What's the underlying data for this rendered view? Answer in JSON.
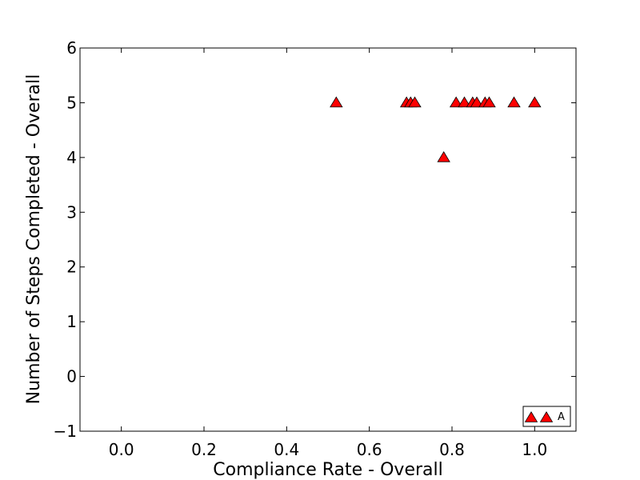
{
  "chart_data": {
    "type": "scatter",
    "title": "",
    "xlabel": "Compliance Rate - Overall",
    "ylabel": "Number of Steps Completed - Overall",
    "xlim": [
      -0.1,
      1.1
    ],
    "ylim": [
      -1,
      6
    ],
    "xticks": [
      0.0,
      0.2,
      0.4,
      0.6,
      0.8,
      1.0
    ],
    "xtick_labels": [
      "0.0",
      "0.2",
      "0.4",
      "0.6",
      "0.8",
      "1.0"
    ],
    "yticks": [
      -1,
      0,
      1,
      2,
      3,
      4,
      5,
      6
    ],
    "ytick_labels": [
      "−1",
      "0",
      "1",
      "2",
      "3",
      "4",
      "5",
      "6"
    ],
    "grid": false,
    "legend": {
      "position": "bottom-right",
      "entries": [
        "A"
      ]
    },
    "series": [
      {
        "name": "A",
        "marker": "triangle-up",
        "color": "#ff0000",
        "edge_color": "#000000",
        "x": [
          0.52,
          0.69,
          0.7,
          0.71,
          0.78,
          0.81,
          0.83,
          0.85,
          0.86,
          0.88,
          0.89,
          0.95,
          1.0
        ],
        "y": [
          5,
          5,
          5,
          5,
          4,
          5,
          5,
          5,
          5,
          5,
          5,
          5,
          5
        ]
      }
    ]
  }
}
